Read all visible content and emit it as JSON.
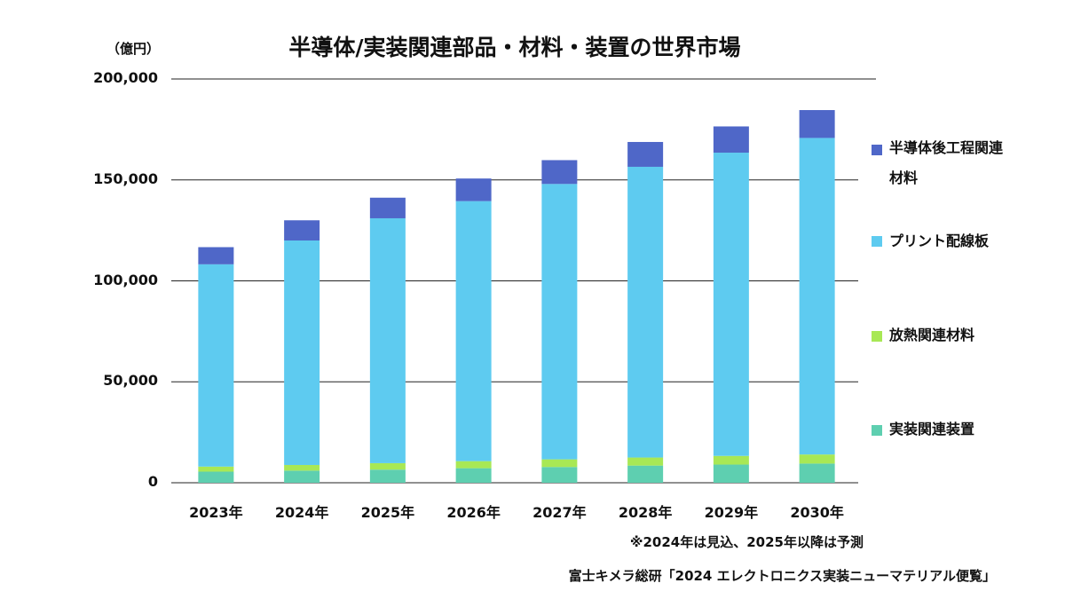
{
  "unit_label": "（億円）",
  "note": "※2024年は見込、2025年以降は予測",
  "source": "富士キメラ総研「2024 エレクトロニクス実装ニューマテリアル便覧」",
  "chart_data": {
    "type": "bar",
    "stacked": true,
    "title": "半導体/実装関連部品・材料・装置の世界市場",
    "xlabel": "",
    "ylabel": "（億円）",
    "ylim": [
      0,
      200000
    ],
    "yticks": [
      "0",
      "50,000",
      "100,000",
      "150,000",
      "200,000"
    ],
    "ytick_values": [
      0,
      50000,
      100000,
      150000,
      200000
    ],
    "grid": true,
    "legend_position": "right",
    "categories": [
      "2023年",
      "2024年",
      "2025年",
      "2026年",
      "2027年",
      "2028年",
      "2029年",
      "2030年"
    ],
    "series": [
      {
        "name": "実装関連装置",
        "color": "#5ecfb0",
        "values": [
          5500,
          6000,
          6500,
          7200,
          7800,
          8500,
          9000,
          9500
        ]
      },
      {
        "name": "放熱関連材料",
        "color": "#a8e855",
        "values": [
          2500,
          2800,
          3200,
          3500,
          3800,
          4000,
          4300,
          4500
        ]
      },
      {
        "name": "プリント配線板",
        "color": "#5ecbf0",
        "values": [
          100200,
          111200,
          121300,
          128800,
          136400,
          144000,
          150200,
          156800
        ]
      },
      {
        "name": "半導体後工程関連材料",
        "color": "#4f67c8",
        "values": [
          8500,
          10000,
          10200,
          11200,
          11800,
          12300,
          13000,
          13800
        ]
      }
    ]
  }
}
